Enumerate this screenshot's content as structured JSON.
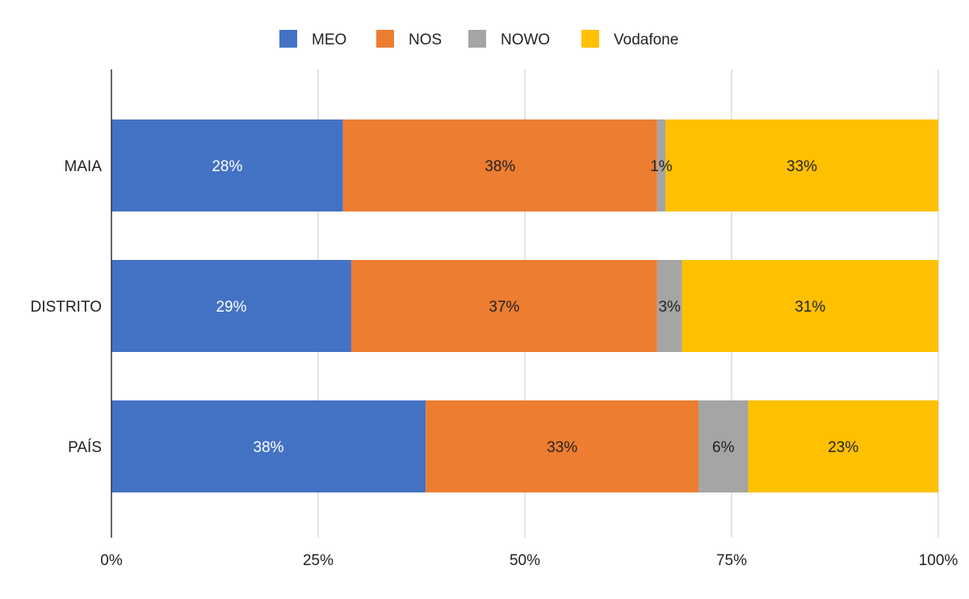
{
  "chart_data": {
    "type": "bar",
    "orientation": "horizontal",
    "stacked": "percent",
    "categories": [
      "MAIA",
      "DISTRITO",
      "PAÍS"
    ],
    "series": [
      {
        "name": "MEO",
        "color": "#4472C4",
        "label_color": "#ffffff",
        "values": [
          28,
          29,
          38
        ],
        "labels": [
          "28%",
          "29%",
          "38%"
        ]
      },
      {
        "name": "NOS",
        "color": "#ED7D31",
        "label_color": "#222222",
        "values": [
          38,
          37,
          33
        ],
        "labels": [
          "38%",
          "37%",
          "33%"
        ]
      },
      {
        "name": "NOWO",
        "color": "#A5A5A5",
        "label_color": "#222222",
        "values": [
          1,
          3,
          6
        ],
        "labels": [
          "1%",
          "3%",
          "6%"
        ]
      },
      {
        "name": "Vodafone",
        "color": "#FFC000",
        "label_color": "#222222",
        "values": [
          33,
          31,
          23
        ],
        "labels": [
          "33%",
          "31%",
          "23%"
        ]
      }
    ],
    "xlim": [
      0,
      100
    ],
    "xticks": [
      0,
      25,
      50,
      75,
      100
    ],
    "xtick_labels": [
      "0%",
      "25%",
      "50%",
      "75%",
      "100%"
    ],
    "grid": true,
    "legend_position": "top-center"
  }
}
